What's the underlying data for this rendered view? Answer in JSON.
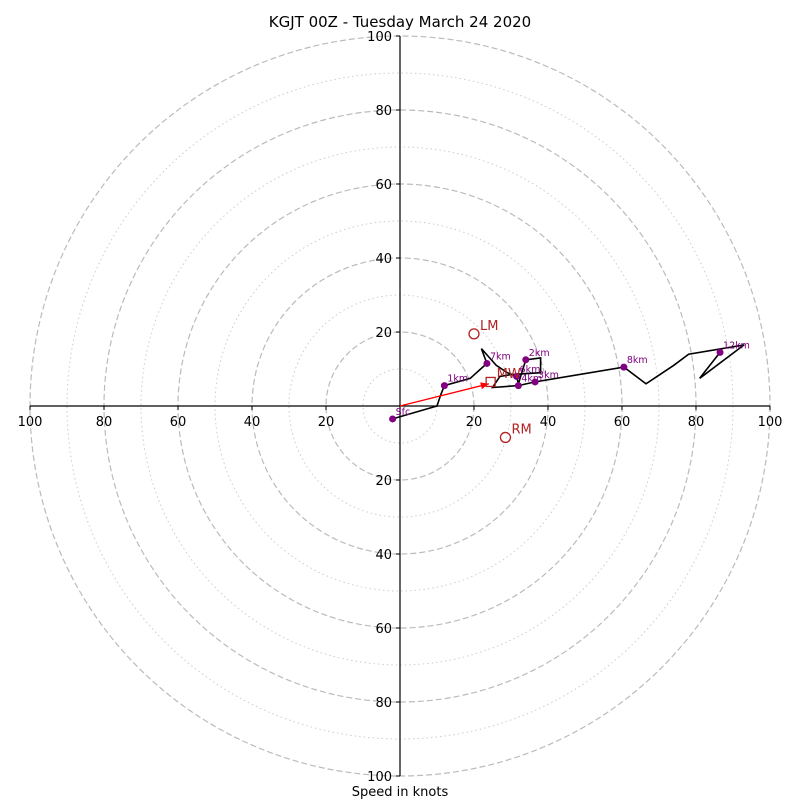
{
  "chart_data": {
    "type": "scatter",
    "subtype": "hodograph",
    "title": "KGJT 00Z - Tuesday March 24 2020",
    "xlabel": "Speed in knots",
    "ylabel": "",
    "xlim": [
      -100,
      100
    ],
    "ylim": [
      -100,
      100
    ],
    "axis_tick_labels": [
      "100",
      "80",
      "60",
      "40",
      "20",
      "20",
      "40",
      "60",
      "80",
      "100"
    ],
    "ring_speeds_major": [
      20,
      40,
      60,
      80,
      100
    ],
    "ring_speeds_minor": [
      10,
      30,
      50,
      70,
      90
    ],
    "grid": true,
    "colors": {
      "hodograph": "#000000",
      "points": "#800080",
      "labels": "#800080",
      "storm_motion": "#b22222",
      "shear_vector": "#ff0000",
      "major_ring": "#bbbbbb",
      "minor_ring": "#cccccc"
    },
    "series": [
      {
        "values": [
          {
            "u": -2,
            "v": -3.5
          },
          {
            "u": 10,
            "v": 0
          },
          {
            "u": 11,
            "v": 3
          },
          {
            "u": 12,
            "v": 5.5
          },
          {
            "u": 19,
            "v": 7.5
          },
          {
            "u": 23.5,
            "v": 11.5
          },
          {
            "u": 22,
            "v": 15.5
          },
          {
            "u": 26,
            "v": 11
          },
          {
            "u": 29,
            "v": 9
          },
          {
            "u": 31.5,
            "v": 8
          },
          {
            "u": 32,
            "v": 6
          },
          {
            "u": 34,
            "v": 12.5
          },
          {
            "u": 38,
            "v": 13
          },
          {
            "u": 38,
            "v": 9
          },
          {
            "u": 30,
            "v": 8.5
          },
          {
            "u": 27,
            "v": 8
          },
          {
            "u": 25,
            "v": 5
          },
          {
            "u": 32,
            "v": 5.5
          },
          {
            "u": 36.5,
            "v": 6.5
          },
          {
            "u": 60.5,
            "v": 10.5
          },
          {
            "u": 66.5,
            "v": 6
          },
          {
            "u": 74,
            "v": 11
          },
          {
            "u": 78,
            "v": 14
          },
          {
            "u": 93,
            "v": 16.5
          },
          {
            "u": 81,
            "v": 7.5
          },
          {
            "u": 86.5,
            "v": 14.5
          }
        ]
      }
    ],
    "height_labels": [
      {
        "label": "Sfc",
        "u": -2,
        "v": -3.5
      },
      {
        "label": "1km",
        "u": 12,
        "v": 5.5
      },
      {
        "label": "2km",
        "u": 34,
        "v": 12.5
      },
      {
        "label": "3km",
        "u": 36.5,
        "v": 6.5
      },
      {
        "label": "4km",
        "u": 32,
        "v": 5.5
      },
      {
        "label": "6km",
        "u": 31.5,
        "v": 8
      },
      {
        "label": "7km",
        "u": 23.5,
        "v": 11.5
      },
      {
        "label": "8km",
        "u": 60.5,
        "v": 10.5
      },
      {
        "label": "12km",
        "u": 86.5,
        "v": 14.5
      }
    ],
    "storm_motion": [
      {
        "label": "LM",
        "u": 20,
        "v": 19.5
      },
      {
        "label": "RM",
        "u": 28.5,
        "v": -8.5
      },
      {
        "label": "MW",
        "u": 24.5,
        "v": 6.5
      }
    ],
    "shear_vector": {
      "from_u": 0,
      "from_v": 0,
      "to_u": 24,
      "to_v": 6
    }
  }
}
